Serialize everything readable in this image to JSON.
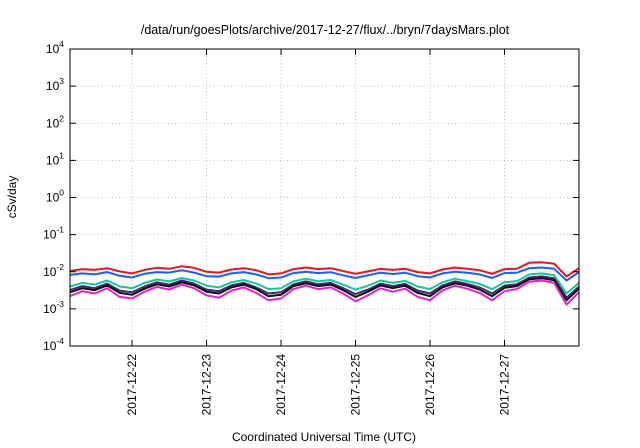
{
  "chart_data": {
    "type": "line",
    "title": "/data/run/goesPlots/archive/2017-12-27/flux/../bryn/7daysMars.plot",
    "xlabel": "Coordinated Universal Time (UTC)",
    "ylabel": "cSv/day",
    "yscale": "log",
    "ylim": [
      0.0001,
      10000
    ],
    "xlim": [
      "2017-12-21T04:00",
      "2017-12-28T00:00"
    ],
    "grid": true,
    "y_ticks": [
      {
        "base": "10",
        "exp": "4",
        "value": 10000
      },
      {
        "base": "10",
        "exp": "3",
        "value": 1000
      },
      {
        "base": "10",
        "exp": "2",
        "value": 100
      },
      {
        "base": "10",
        "exp": "1",
        "value": 10
      },
      {
        "base": "10",
        "exp": "0",
        "value": 1
      },
      {
        "base": "10",
        "exp": "-1",
        "value": 0.1
      },
      {
        "base": "10",
        "exp": "-2",
        "value": 0.01
      },
      {
        "base": "10",
        "exp": "-3",
        "value": 0.001
      },
      {
        "base": "10",
        "exp": "-4",
        "value": 0.0001
      }
    ],
    "x_ticks": [
      {
        "label": "2017-12-22",
        "value": "2017-12-22T00:00"
      },
      {
        "label": "2017-12-23",
        "value": "2017-12-23T00:00"
      },
      {
        "label": "2017-12-24",
        "value": "2017-12-24T00:00"
      },
      {
        "label": "2017-12-25",
        "value": "2017-12-25T00:00"
      },
      {
        "label": "2017-12-26",
        "value": "2017-12-26T00:00"
      },
      {
        "label": "2017-12-27",
        "value": "2017-12-27T00:00"
      }
    ],
    "x": [
      "2017-12-21T04:00",
      "2017-12-21T08:00",
      "2017-12-21T12:00",
      "2017-12-21T16:00",
      "2017-12-21T20:00",
      "2017-12-22T00:00",
      "2017-12-22T04:00",
      "2017-12-22T08:00",
      "2017-12-22T12:00",
      "2017-12-22T16:00",
      "2017-12-22T20:00",
      "2017-12-23T00:00",
      "2017-12-23T04:00",
      "2017-12-23T08:00",
      "2017-12-23T12:00",
      "2017-12-23T16:00",
      "2017-12-23T20:00",
      "2017-12-24T00:00",
      "2017-12-24T04:00",
      "2017-12-24T08:00",
      "2017-12-24T12:00",
      "2017-12-24T16:00",
      "2017-12-24T20:00",
      "2017-12-25T00:00",
      "2017-12-25T04:00",
      "2017-12-25T08:00",
      "2017-12-25T12:00",
      "2017-12-25T16:00",
      "2017-12-25T20:00",
      "2017-12-26T00:00",
      "2017-12-26T04:00",
      "2017-12-26T08:00",
      "2017-12-26T12:00",
      "2017-12-26T16:00",
      "2017-12-26T20:00",
      "2017-12-27T00:00",
      "2017-12-27T04:00",
      "2017-12-27T08:00",
      "2017-12-27T12:00",
      "2017-12-27T16:00",
      "2017-12-27T20:00",
      "2017-12-28T00:00"
    ],
    "series": [
      {
        "color": "#e8161a",
        "values": [
          0.0105,
          0.0118,
          0.0112,
          0.0125,
          0.0102,
          0.009,
          0.0112,
          0.0128,
          0.012,
          0.014,
          0.0128,
          0.01,
          0.0095,
          0.0115,
          0.0125,
          0.011,
          0.0085,
          0.009,
          0.0118,
          0.013,
          0.0118,
          0.0125,
          0.0105,
          0.0088,
          0.0102,
          0.012,
          0.0112,
          0.012,
          0.0098,
          0.009,
          0.0115,
          0.013,
          0.012,
          0.011,
          0.0088,
          0.0118,
          0.012,
          0.0175,
          0.018,
          0.0165,
          0.0075,
          0.0125
        ]
      },
      {
        "color": "#1f5ff0",
        "values": [
          0.0082,
          0.009,
          0.0085,
          0.0098,
          0.0078,
          0.007,
          0.0088,
          0.0098,
          0.0095,
          0.011,
          0.0095,
          0.0076,
          0.0074,
          0.009,
          0.0098,
          0.0085,
          0.0067,
          0.007,
          0.0092,
          0.01,
          0.0092,
          0.0097,
          0.008,
          0.0068,
          0.008,
          0.0094,
          0.0087,
          0.0094,
          0.0076,
          0.007,
          0.009,
          0.01,
          0.0094,
          0.0085,
          0.0068,
          0.0092,
          0.0094,
          0.0125,
          0.013,
          0.012,
          0.0058,
          0.0098
        ]
      },
      {
        "color": "#19c49b",
        "values": [
          0.004,
          0.005,
          0.0045,
          0.0058,
          0.004,
          0.0036,
          0.005,
          0.0062,
          0.0055,
          0.0068,
          0.0058,
          0.0042,
          0.0038,
          0.0052,
          0.006,
          0.0048,
          0.0034,
          0.0036,
          0.0055,
          0.0065,
          0.0055,
          0.006,
          0.0045,
          0.0033,
          0.0042,
          0.0058,
          0.005,
          0.0057,
          0.004,
          0.0034,
          0.0052,
          0.0065,
          0.0056,
          0.0047,
          0.0034,
          0.0052,
          0.0056,
          0.0085,
          0.009,
          0.008,
          0.0026,
          0.005
        ]
      },
      {
        "color": "#3a2a6e",
        "values": [
          0.0032,
          0.0041,
          0.0036,
          0.0048,
          0.0031,
          0.0028,
          0.004,
          0.0052,
          0.0045,
          0.0058,
          0.0048,
          0.0033,
          0.003,
          0.0043,
          0.005,
          0.0038,
          0.0026,
          0.0028,
          0.0046,
          0.0055,
          0.0046,
          0.005,
          0.0036,
          0.0025,
          0.0033,
          0.0048,
          0.0041,
          0.0047,
          0.0031,
          0.0026,
          0.0043,
          0.0055,
          0.0047,
          0.0038,
          0.0026,
          0.0042,
          0.0046,
          0.007,
          0.0075,
          0.0066,
          0.002,
          0.004
        ]
      },
      {
        "color": "#111111",
        "values": [
          0.0028,
          0.0036,
          0.0032,
          0.0043,
          0.0027,
          0.0024,
          0.0035,
          0.0046,
          0.004,
          0.0052,
          0.0043,
          0.0029,
          0.0026,
          0.0038,
          0.0045,
          0.0034,
          0.0022,
          0.0024,
          0.0041,
          0.0049,
          0.0041,
          0.0045,
          0.0032,
          0.0021,
          0.0029,
          0.0043,
          0.0036,
          0.0042,
          0.0027,
          0.0022,
          0.0038,
          0.0049,
          0.0042,
          0.0033,
          0.0022,
          0.0037,
          0.0041,
          0.0063,
          0.0067,
          0.0059,
          0.0017,
          0.0035
        ]
      },
      {
        "color": "#e424c8",
        "values": [
          0.0022,
          0.003,
          0.0026,
          0.0036,
          0.0021,
          0.0019,
          0.0029,
          0.0039,
          0.0033,
          0.0045,
          0.0036,
          0.0023,
          0.002,
          0.0031,
          0.0038,
          0.0027,
          0.0017,
          0.0019,
          0.0034,
          0.0042,
          0.0034,
          0.0038,
          0.0026,
          0.0016,
          0.0023,
          0.0036,
          0.0029,
          0.0035,
          0.0021,
          0.0017,
          0.0031,
          0.0042,
          0.0035,
          0.0027,
          0.0017,
          0.003,
          0.0034,
          0.0054,
          0.0058,
          0.005,
          0.0013,
          0.0028
        ]
      }
    ]
  }
}
